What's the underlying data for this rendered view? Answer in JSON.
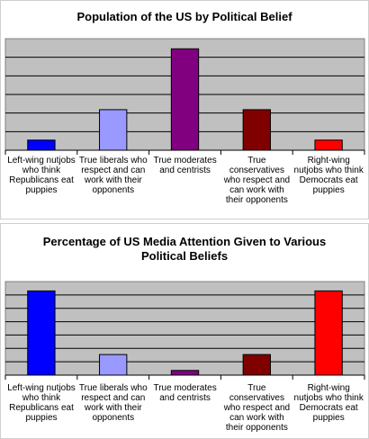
{
  "chart_data": [
    {
      "type": "bar",
      "title": "Population of the US by Political Belief",
      "categories": [
        "Left-wing nutjobs who think Republicans eat puppies",
        "True liberals who respect and can work with their opponents",
        "True moderates and centrists",
        "True conservatives who respect and can work with their opponents",
        "Right-wing nutjobs who think Democrats eat puppies"
      ],
      "values": [
        1,
        4,
        10,
        4,
        1
      ],
      "colors": [
        "#0000ff",
        "#9999ff",
        "#800080",
        "#800000",
        "#ff0000"
      ],
      "ylim": [
        0,
        11
      ],
      "grid": true,
      "legend": "none"
    },
    {
      "type": "bar",
      "title": "Percentage of US Media Attention Given to Various Political Beliefs",
      "categories": [
        "Left-wing nutjobs who think Republicans eat puppies",
        "True liberals who respect and can work with their opponents",
        "True moderates and centrists",
        "True conservatives who respect and can work with their opponents",
        "Right-wing nutjobs who think Democrats eat puppies"
      ],
      "values": [
        9,
        2.2,
        0.5,
        2.2,
        9
      ],
      "colors": [
        "#0000ff",
        "#9999ff",
        "#800080",
        "#800000",
        "#ff0000"
      ],
      "ylim": [
        0,
        10
      ],
      "grid": true,
      "legend": "none"
    }
  ]
}
